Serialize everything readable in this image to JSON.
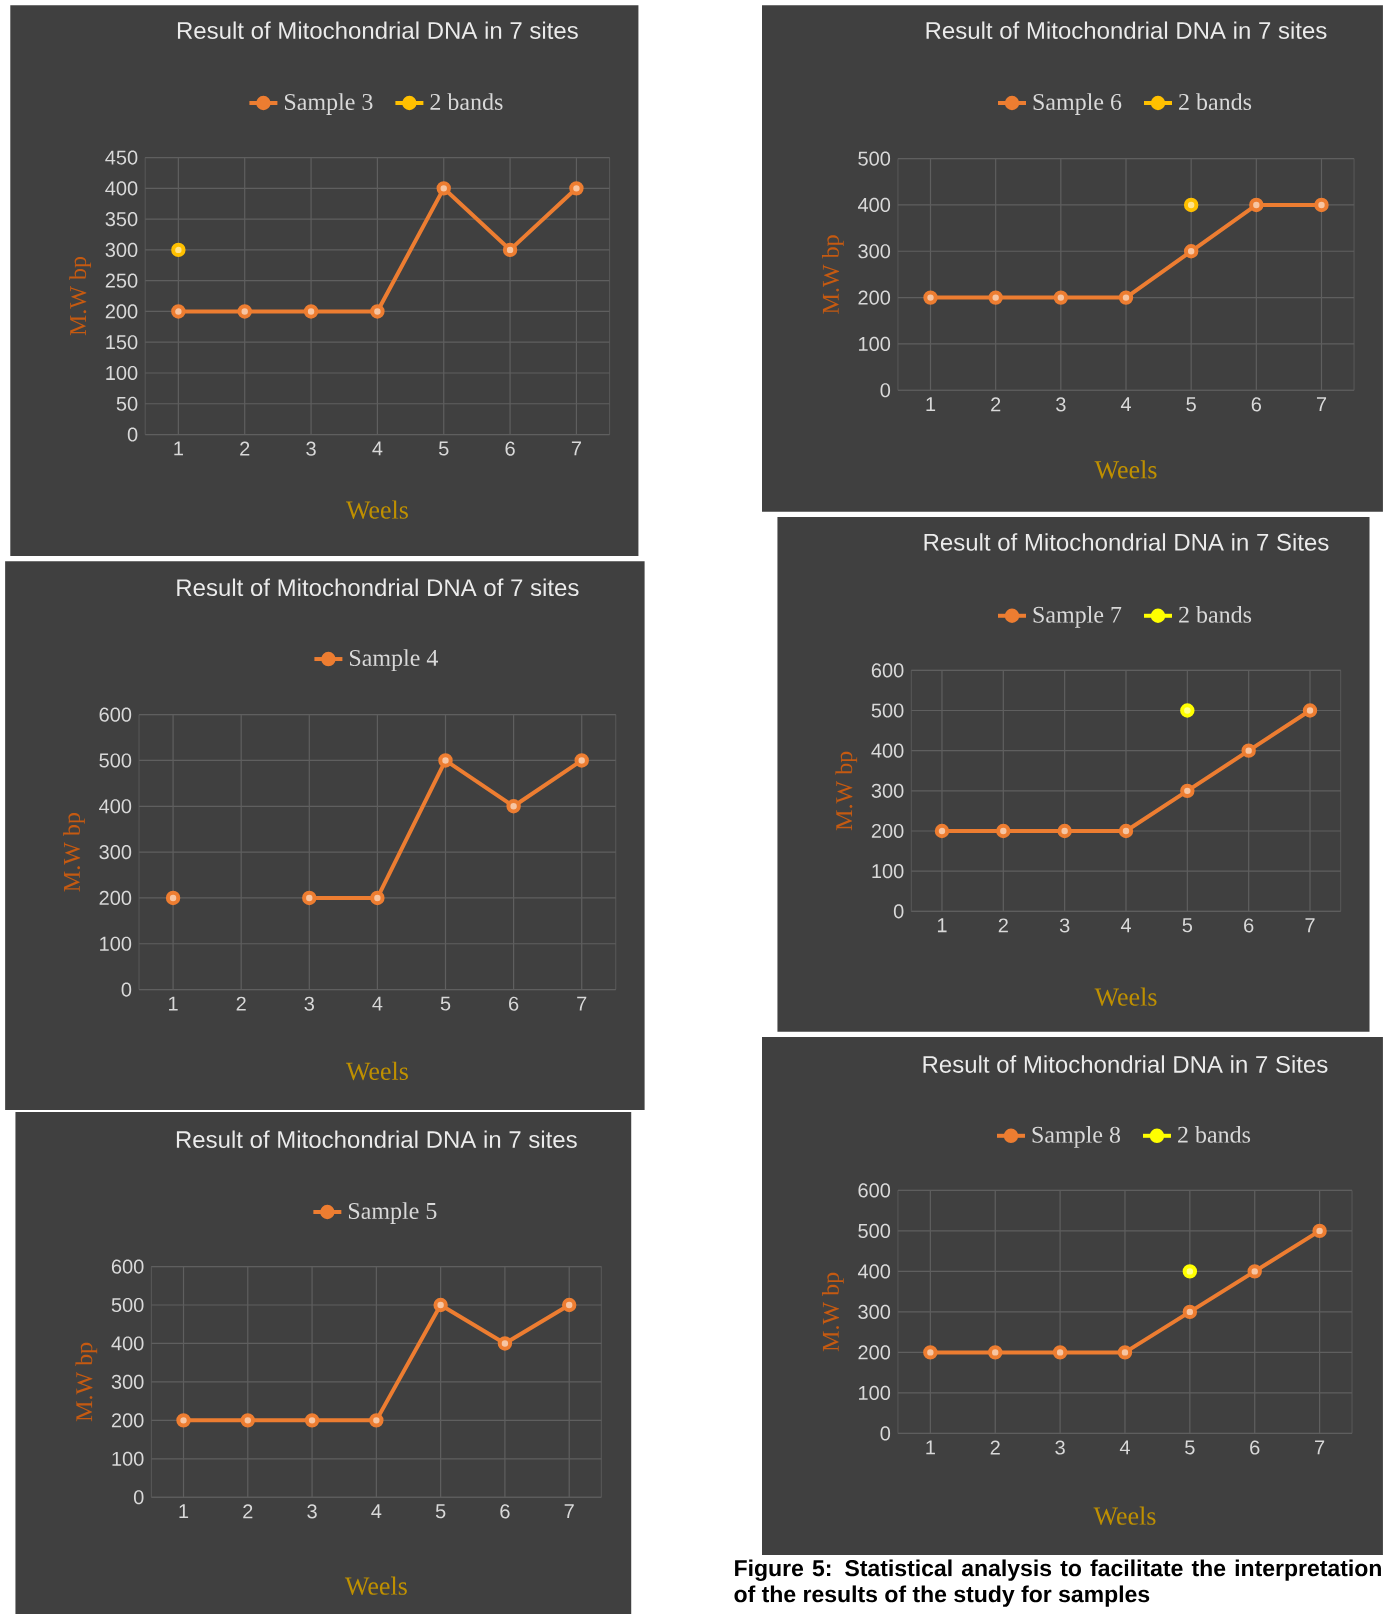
{
  "chart_data": [
    {
      "type": "line",
      "title": "Result of Mitochondrial DNA in 7 sites",
      "xlabel": "Weels",
      "ylabel": "M.W bp",
      "categories": [
        "1",
        "2",
        "3",
        "4",
        "5",
        "6",
        "7"
      ],
      "ylim": [
        0,
        450
      ],
      "yticks": [
        0,
        50,
        100,
        150,
        200,
        250,
        300,
        350,
        400,
        450
      ],
      "grid": true,
      "legend": "top",
      "marker": "circle",
      "series": [
        {
          "name": "Sample 3",
          "color": "#ed7d31",
          "values": [
            200,
            200,
            200,
            200,
            400,
            300,
            400
          ]
        },
        {
          "name": "2 bands",
          "color": "#ffc000",
          "values": [
            300,
            null,
            null,
            null,
            null,
            null,
            null
          ]
        }
      ]
    },
    {
      "type": "line",
      "title": "Result of Mitochondrial DNA in 7 sites",
      "xlabel": "Weels",
      "ylabel": "M.W bp",
      "categories": [
        "1",
        "2",
        "3",
        "4",
        "5",
        "6",
        "7"
      ],
      "ylim": [
        0,
        500
      ],
      "yticks": [
        0,
        100,
        200,
        300,
        400,
        500
      ],
      "grid": true,
      "legend": "top",
      "marker": "circle",
      "series": [
        {
          "name": "Sample 6",
          "color": "#ed7d31",
          "values": [
            200,
            200,
            200,
            200,
            300,
            400,
            400
          ]
        },
        {
          "name": "2 bands",
          "color": "#ffc000",
          "values": [
            null,
            null,
            null,
            null,
            400,
            null,
            null
          ]
        }
      ]
    },
    {
      "type": "line",
      "title": "Result of Mitochondrial DNA of 7 sites",
      "xlabel": "Weels",
      "ylabel": "M.W bp",
      "categories": [
        "1",
        "2",
        "3",
        "4",
        "5",
        "6",
        "7"
      ],
      "ylim": [
        0,
        600
      ],
      "yticks": [
        0,
        100,
        200,
        300,
        400,
        500,
        600
      ],
      "grid": true,
      "legend": "top",
      "marker": "circle",
      "series": [
        {
          "name": "Sample 4",
          "color": "#ed7d31",
          "values": [
            200,
            null,
            200,
            200,
            500,
            400,
            500
          ]
        }
      ]
    },
    {
      "type": "line",
      "title": "Result of Mitochondrial DNA in 7 Sites",
      "xlabel": "Weels",
      "ylabel": "M.W bp",
      "categories": [
        "1",
        "2",
        "3",
        "4",
        "5",
        "6",
        "7"
      ],
      "ylim": [
        0,
        600
      ],
      "yticks": [
        0,
        100,
        200,
        300,
        400,
        500,
        600
      ],
      "grid": true,
      "legend": "top",
      "marker": "circle",
      "series": [
        {
          "name": "Sample 7",
          "color": "#ed7d31",
          "values": [
            200,
            200,
            200,
            200,
            300,
            400,
            500
          ]
        },
        {
          "name": "2 bands",
          "color": "#ffff00",
          "values": [
            null,
            null,
            null,
            null,
            500,
            null,
            null
          ]
        }
      ]
    },
    {
      "type": "line",
      "title": "Result of Mitochondrial DNA in 7 sites",
      "xlabel": "Weels",
      "ylabel": "M.W bp",
      "categories": [
        "1",
        "2",
        "3",
        "4",
        "5",
        "6",
        "7"
      ],
      "ylim": [
        0,
        600
      ],
      "yticks": [
        0,
        100,
        200,
        300,
        400,
        500,
        600
      ],
      "grid": true,
      "legend": "top",
      "marker": "circle",
      "series": [
        {
          "name": "Sample 5",
          "color": "#ed7d31",
          "values": [
            200,
            200,
            200,
            200,
            500,
            400,
            500
          ]
        }
      ]
    },
    {
      "type": "line",
      "title": "Result of Mitochondrial DNA in 7 Sites",
      "xlabel": "Weels",
      "ylabel": "M.W bp",
      "categories": [
        "1",
        "2",
        "3",
        "4",
        "5",
        "6",
        "7"
      ],
      "ylim": [
        0,
        600
      ],
      "yticks": [
        0,
        100,
        200,
        300,
        400,
        500,
        600
      ],
      "grid": true,
      "legend": "top",
      "marker": "circle",
      "series": [
        {
          "name": "Sample 8",
          "color": "#ed7d31",
          "values": [
            200,
            200,
            200,
            200,
            300,
            400,
            500
          ]
        },
        {
          "name": "2 bands",
          "color": "#ffff00",
          "values": [
            null,
            null,
            null,
            null,
            400,
            null,
            null
          ]
        }
      ],
      "annotations": [
        "Figure 5: Statistical analysis to facilitate the interpretation of the results of the study for samples"
      ]
    }
  ]
}
